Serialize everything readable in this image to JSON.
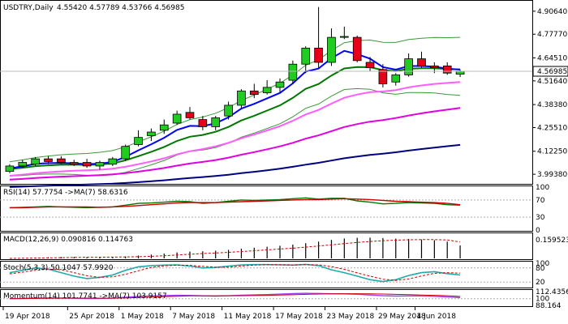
{
  "chart_data": {
    "type": "candlestick",
    "symbol_line": "USDTRY,Daily",
    "ohlc_readout": "4.55420 4.57789 4.53766 4.56985",
    "current_price_label": "4.56985",
    "price_axis": {
      "ylim": [
        3.94,
        4.96
      ],
      "ticks": [
        "4.90640",
        "4.77770",
        "4.64510",
        "4.51640",
        "4.38380",
        "4.25510",
        "4.12250",
        "3.99380"
      ]
    },
    "x_labels": [
      "19 Apr 2018",
      "25 Apr 2018",
      "1 May 2018",
      "7 May 2018",
      "11 May 2018",
      "17 May 2018",
      "23 May 2018",
      "29 May 2018",
      "4 Jun 2018"
    ],
    "candles": [
      {
        "o": 4.01,
        "h": 4.05,
        "l": 4.0,
        "c": 4.04
      },
      {
        "o": 4.04,
        "h": 4.075,
        "l": 4.03,
        "c": 4.06
      },
      {
        "o": 4.05,
        "h": 4.09,
        "l": 4.04,
        "c": 4.08
      },
      {
        "o": 4.08,
        "h": 4.095,
        "l": 4.05,
        "c": 4.065
      },
      {
        "o": 4.08,
        "h": 4.095,
        "l": 4.05,
        "c": 4.06
      },
      {
        "o": 4.06,
        "h": 4.075,
        "l": 4.04,
        "c": 4.05
      },
      {
        "o": 4.06,
        "h": 4.08,
        "l": 4.03,
        "c": 4.04
      },
      {
        "o": 4.04,
        "h": 4.07,
        "l": 4.02,
        "c": 4.06
      },
      {
        "o": 4.05,
        "h": 4.09,
        "l": 4.04,
        "c": 4.08
      },
      {
        "o": 4.08,
        "h": 4.16,
        "l": 4.07,
        "c": 4.15
      },
      {
        "o": 4.16,
        "h": 4.24,
        "l": 4.15,
        "c": 4.2
      },
      {
        "o": 4.21,
        "h": 4.25,
        "l": 4.18,
        "c": 4.23
      },
      {
        "o": 4.24,
        "h": 4.3,
        "l": 4.22,
        "c": 4.27
      },
      {
        "o": 4.28,
        "h": 4.35,
        "l": 4.27,
        "c": 4.33
      },
      {
        "o": 4.34,
        "h": 4.37,
        "l": 4.3,
        "c": 4.31
      },
      {
        "o": 4.3,
        "h": 4.32,
        "l": 4.24,
        "c": 4.26
      },
      {
        "o": 4.26,
        "h": 4.32,
        "l": 4.24,
        "c": 4.31
      },
      {
        "o": 4.32,
        "h": 4.4,
        "l": 4.3,
        "c": 4.38
      },
      {
        "o": 4.38,
        "h": 4.47,
        "l": 4.36,
        "c": 4.46
      },
      {
        "o": 4.46,
        "h": 4.5,
        "l": 4.42,
        "c": 4.44
      },
      {
        "o": 4.45,
        "h": 4.52,
        "l": 4.44,
        "c": 4.48
      },
      {
        "o": 4.48,
        "h": 4.53,
        "l": 4.45,
        "c": 4.51
      },
      {
        "o": 4.52,
        "h": 4.63,
        "l": 4.5,
        "c": 4.61
      },
      {
        "o": 4.61,
        "h": 4.71,
        "l": 4.56,
        "c": 4.7
      },
      {
        "o": 4.7,
        "h": 4.93,
        "l": 4.59,
        "c": 4.62
      },
      {
        "o": 4.62,
        "h": 4.81,
        "l": 4.6,
        "c": 4.76
      },
      {
        "o": 4.76,
        "h": 4.82,
        "l": 4.75,
        "c": 4.765
      },
      {
        "o": 4.76,
        "h": 4.77,
        "l": 4.62,
        "c": 4.63
      },
      {
        "o": 4.62,
        "h": 4.65,
        "l": 4.57,
        "c": 4.59
      },
      {
        "o": 4.58,
        "h": 4.61,
        "l": 4.48,
        "c": 4.5
      },
      {
        "o": 4.51,
        "h": 4.56,
        "l": 4.49,
        "c": 4.55
      },
      {
        "o": 4.55,
        "h": 4.67,
        "l": 4.54,
        "c": 4.64
      },
      {
        "o": 4.64,
        "h": 4.68,
        "l": 4.59,
        "c": 4.6
      },
      {
        "o": 4.6,
        "h": 4.62,
        "l": 4.56,
        "c": 4.59
      },
      {
        "o": 4.6,
        "h": 4.62,
        "l": 4.55,
        "c": 4.56
      },
      {
        "o": 4.554,
        "h": 4.578,
        "l": 4.538,
        "c": 4.57
      }
    ],
    "colors": {
      "bull": "#1fcc1f",
      "bear": "#e8001a",
      "ma_fast": "#0000ff",
      "ma_mid": "#007800",
      "ma_long_pink": "#ff5cff",
      "ma_magenta": "#e000e0",
      "ma_navy": "#000080",
      "band": "#3a9a3a",
      "signal_red": "#cc0000",
      "stoch_main": "#22aaaa",
      "momentum": "#9d3bff"
    },
    "indicators": {
      "rsi": {
        "label": "RSI(14) 57.7754  ->MA(7) 58.6316",
        "axis_ticks": [
          "100",
          "70",
          "30",
          "0"
        ],
        "values": [
          52,
          53,
          54,
          55,
          54,
          53,
          52,
          53,
          54,
          58,
          62,
          63,
          65,
          67,
          66,
          62,
          64,
          67,
          70,
          69,
          70,
          71,
          73,
          75,
          72,
          74,
          74,
          68,
          65,
          61,
          62,
          64,
          63,
          62,
          59,
          58
        ],
        "ma": [
          52,
          52,
          53,
          54,
          54,
          54,
          54,
          53,
          54,
          55,
          57,
          59,
          61,
          63,
          64,
          64,
          64,
          65,
          66,
          67,
          68,
          69,
          70,
          71,
          71,
          72,
          73,
          72,
          71,
          69,
          67,
          66,
          65,
          64,
          62,
          59
        ]
      },
      "macd": {
        "label": "MACD(12,26,9) 0.090816 0.114763",
        "axis_ticks": [
          "0.159523"
        ],
        "histogram": [
          0.0,
          0.002,
          0.005,
          0.008,
          0.01,
          0.01,
          0.009,
          0.009,
          0.01,
          0.014,
          0.02,
          0.027,
          0.034,
          0.042,
          0.048,
          0.05,
          0.054,
          0.06,
          0.068,
          0.075,
          0.082,
          0.089,
          0.097,
          0.107,
          0.118,
          0.13,
          0.14,
          0.145,
          0.146,
          0.143,
          0.139,
          0.137,
          0.133,
          0.128,
          0.118,
          0.091
        ],
        "signal": [
          0.0,
          0.001,
          0.002,
          0.004,
          0.005,
          0.007,
          0.008,
          0.008,
          0.009,
          0.01,
          0.012,
          0.015,
          0.019,
          0.024,
          0.029,
          0.034,
          0.038,
          0.043,
          0.048,
          0.054,
          0.06,
          0.066,
          0.072,
          0.079,
          0.087,
          0.095,
          0.104,
          0.112,
          0.119,
          0.124,
          0.128,
          0.131,
          0.132,
          0.132,
          0.13,
          0.115
        ]
      },
      "stochastic": {
        "label": "Stoch(5,3,3) 50.1047 57.9920",
        "axis_ticks": [
          "100",
          "80",
          "20"
        ],
        "main": [
          60,
          70,
          80,
          75,
          60,
          45,
          35,
          40,
          50,
          70,
          85,
          90,
          92,
          93,
          88,
          80,
          82,
          88,
          93,
          94,
          94,
          93,
          92,
          95,
          90,
          72,
          60,
          45,
          30,
          22,
          30,
          48,
          60,
          64,
          56,
          50
        ],
        "signal": [
          55,
          62,
          70,
          75,
          72,
          60,
          47,
          40,
          42,
          53,
          68,
          82,
          89,
          92,
          91,
          87,
          83,
          83,
          88,
          92,
          94,
          94,
          93,
          94,
          93,
          86,
          74,
          59,
          45,
          32,
          27,
          33,
          46,
          57,
          60,
          58
        ]
      },
      "momentum": {
        "label": "Momentum(14) 101.7741  ->MA(7) 103.9157",
        "axis_ticks": [
          "112.4356",
          "100",
          "88.164"
        ],
        "values": [
          100.0,
          100.4,
          100.9,
          101.2,
          101.1,
          100.7,
          100.3,
          100.5,
          101.0,
          102.5,
          104.0,
          104.8,
          105.3,
          105.8,
          105.7,
          105.0,
          104.6,
          105.1,
          106.0,
          106.6,
          107.2,
          108.0,
          108.8,
          109.5,
          109.1,
          108.6,
          108.4,
          107.7,
          106.5,
          105.2,
          104.6,
          104.9,
          104.7,
          104.1,
          103.0,
          101.8
        ],
        "ma": [
          100.0,
          100.2,
          100.4,
          100.7,
          100.9,
          101.0,
          101.0,
          100.9,
          100.8,
          101.2,
          102.0,
          102.8,
          103.6,
          104.3,
          104.8,
          105.0,
          105.0,
          105.1,
          105.2,
          105.5,
          105.8,
          106.3,
          106.9,
          107.6,
          108.1,
          108.5,
          108.7,
          108.7,
          108.5,
          108.1,
          107.6,
          107.0,
          106.5,
          105.9,
          105.1,
          103.9
        ]
      }
    }
  }
}
